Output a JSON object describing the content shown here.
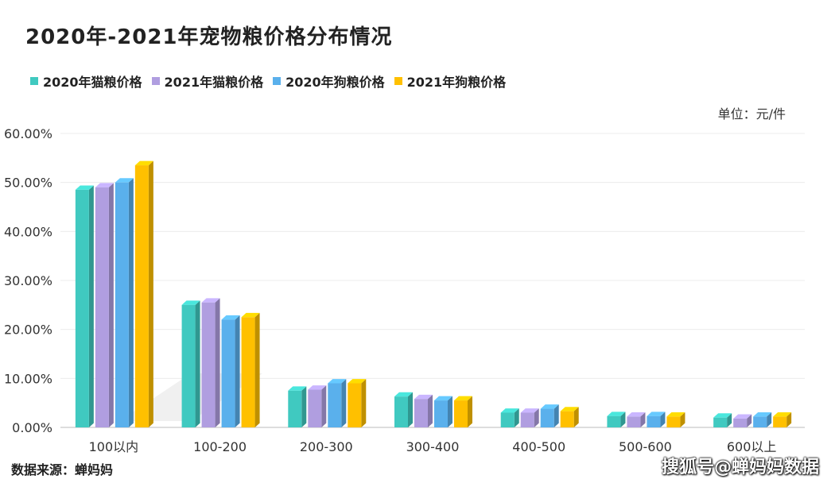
{
  "title": "2020年-2021年宠物粮价格分布情况",
  "unit_label": "单位：元/件",
  "source": "数据来源：蝉妈妈",
  "watermark": "搜狐号@蝉妈妈数据",
  "chart_data": {
    "type": "bar",
    "categories": [
      "100以内",
      "100-200",
      "200-300",
      "300-400",
      "400-500",
      "500-600",
      "600以上"
    ],
    "series": [
      {
        "name": "2020年猫粮价格",
        "color": "#40c9c0",
        "values": [
          48.5,
          25.0,
          7.5,
          6.3,
          3.0,
          2.3,
          2.0
        ]
      },
      {
        "name": "2021年猫粮价格",
        "color": "#b09ee0",
        "values": [
          49.0,
          25.5,
          7.7,
          5.8,
          3.0,
          2.2,
          1.8
        ]
      },
      {
        "name": "2020年狗粮价格",
        "color": "#5ab0ec",
        "values": [
          50.0,
          22.0,
          9.0,
          5.5,
          3.8,
          2.3,
          2.2
        ]
      },
      {
        "name": "2021年狗粮价格",
        "color": "#ffc000",
        "values": [
          53.5,
          22.5,
          9.0,
          5.5,
          3.3,
          2.2,
          2.2
        ]
      }
    ],
    "ylim": [
      0,
      60
    ],
    "yticks": [
      "0.00%",
      "10.00%",
      "20.00%",
      "30.00%",
      "40.00%",
      "50.00%",
      "60.00%"
    ],
    "grid": true,
    "legend_position": "top-left"
  }
}
